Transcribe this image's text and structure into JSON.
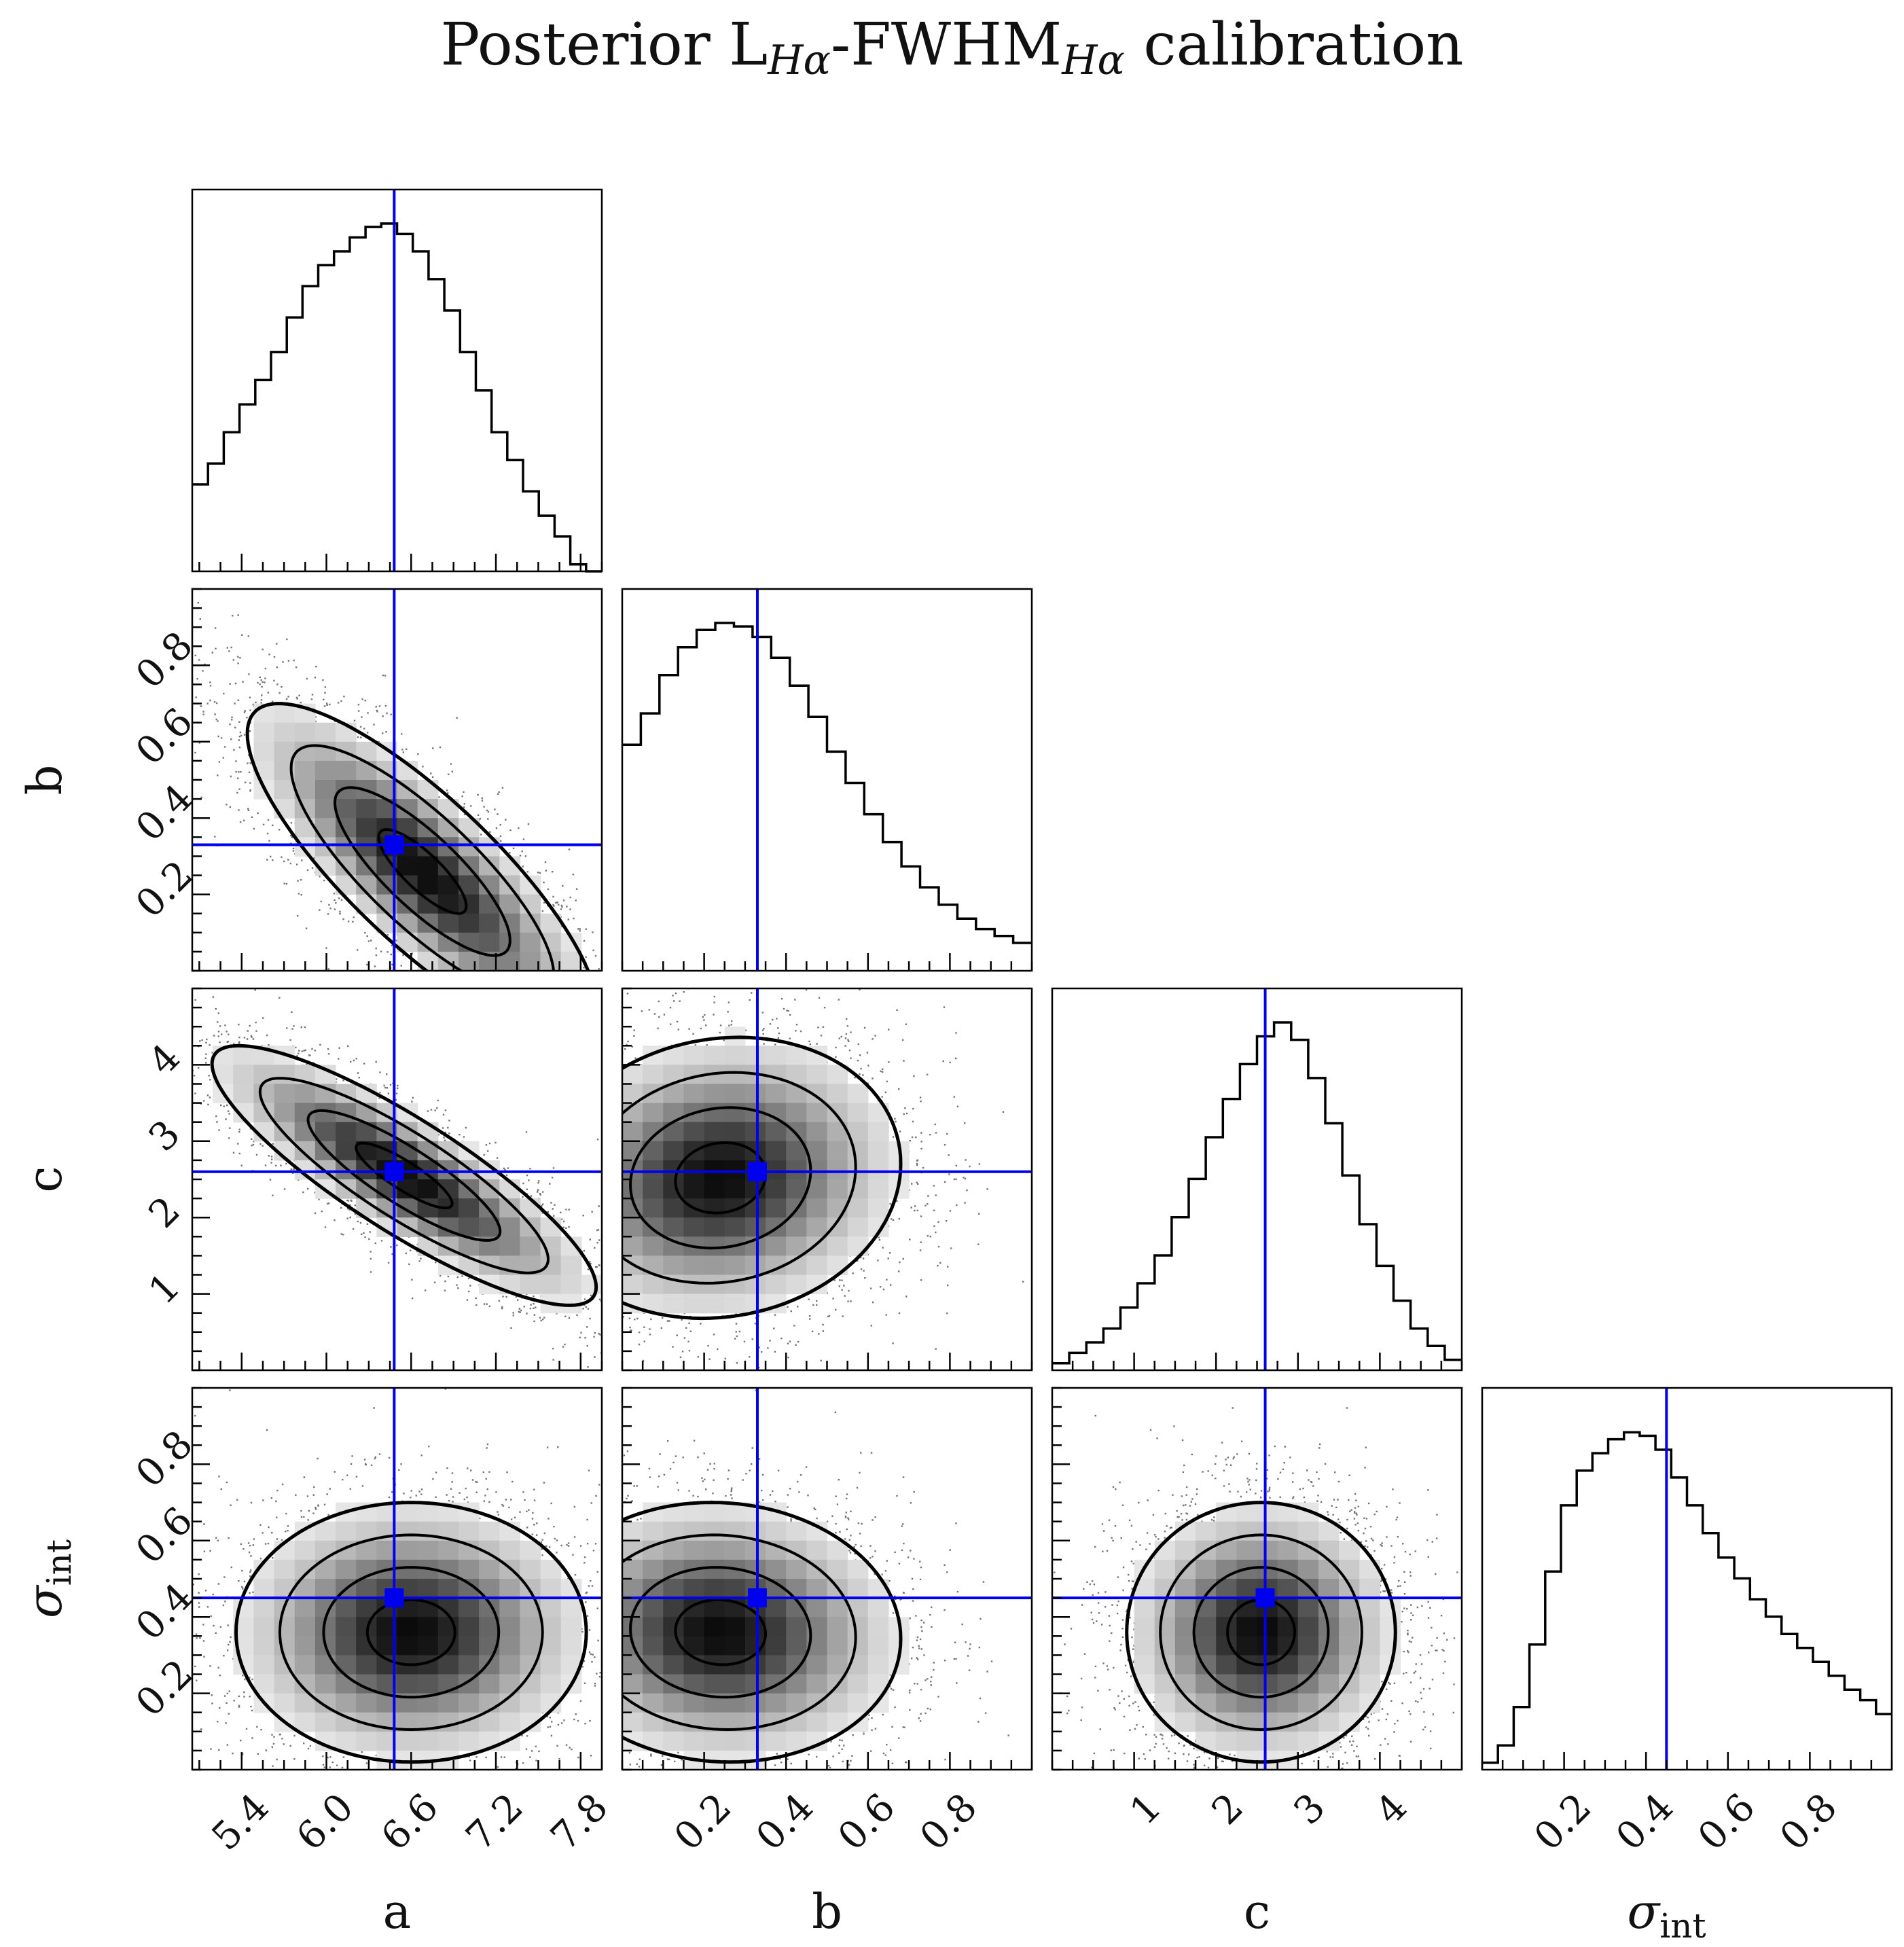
{
  "title": {
    "prefix": "Posterior L",
    "sub1": "Hα",
    "middle": "-FWHM",
    "sub2": "Hα",
    "suffix": " calibration"
  },
  "chart_data": {
    "type": "corner",
    "parameters": [
      "a",
      "b",
      "c",
      "σ_int"
    ],
    "axis_labels": {
      "a": "a",
      "b": "b",
      "c": "c",
      "sigma_int_symbol": "σ",
      "sigma_int_sub": "int"
    },
    "ranges": {
      "a": [
        5.05,
        7.95
      ],
      "b": [
        0.0,
        1.0
      ],
      "c": [
        0.0,
        5.0
      ],
      "sigma_int": [
        0.0,
        1.0
      ]
    },
    "ticks": {
      "a": {
        "values": [
          5.4,
          6.0,
          6.6,
          7.2,
          7.8
        ],
        "labels": [
          "5.4",
          "6.0",
          "6.6",
          "7.2",
          "7.8"
        ]
      },
      "b": {
        "values": [
          0.2,
          0.4,
          0.6,
          0.8
        ],
        "labels": [
          "0.2",
          "0.4",
          "0.6",
          "0.8"
        ]
      },
      "c": {
        "values": [
          1,
          2,
          3,
          4
        ],
        "labels": [
          "1",
          "2",
          "3",
          "4"
        ]
      },
      "sigma_int": {
        "values": [
          0.2,
          0.4,
          0.6,
          0.8
        ],
        "labels": [
          "0.2",
          "0.4",
          "0.6",
          "0.8"
        ]
      }
    },
    "truths": {
      "a": 6.48,
      "b": 0.33,
      "c": 2.6,
      "sigma_int": 0.45
    },
    "truth_color": "#0000ee",
    "histograms": {
      "a": [
        0.25,
        0.31,
        0.4,
        0.48,
        0.55,
        0.63,
        0.73,
        0.82,
        0.88,
        0.92,
        0.96,
        0.99,
        1.0,
        0.97,
        0.92,
        0.84,
        0.75,
        0.63,
        0.52,
        0.4,
        0.32,
        0.23,
        0.16,
        0.1,
        0.02,
        0.0
      ],
      "b": [
        0.65,
        0.74,
        0.85,
        0.93,
        0.98,
        1.0,
        0.99,
        0.96,
        0.9,
        0.82,
        0.73,
        0.63,
        0.54,
        0.45,
        0.37,
        0.3,
        0.24,
        0.19,
        0.15,
        0.12,
        0.1,
        0.08
      ],
      "c": [
        0.02,
        0.05,
        0.08,
        0.12,
        0.18,
        0.25,
        0.33,
        0.44,
        0.55,
        0.67,
        0.78,
        0.88,
        0.96,
        1.0,
        0.95,
        0.84,
        0.71,
        0.56,
        0.42,
        0.3,
        0.2,
        0.12,
        0.07,
        0.03
      ],
      "sigma_int": [
        0.02,
        0.07,
        0.18,
        0.36,
        0.57,
        0.76,
        0.86,
        0.91,
        0.95,
        0.97,
        0.96,
        0.92,
        0.84,
        0.76,
        0.68,
        0.61,
        0.55,
        0.49,
        0.44,
        0.39,
        0.35,
        0.31,
        0.27,
        0.23,
        0.2,
        0.16
      ]
    },
    "densities": [
      {
        "x": "a",
        "y": "b",
        "mean": [
          6.68,
          0.26
        ],
        "sd": [
          0.62,
          0.22
        ],
        "rho": -0.82
      },
      {
        "x": "a",
        "y": "c",
        "mean": [
          6.55,
          2.55
        ],
        "sd": [
          0.68,
          0.85
        ],
        "rho": -0.86
      },
      {
        "x": "b",
        "y": "c",
        "mean": [
          0.24,
          2.52
        ],
        "sd": [
          0.22,
          0.92
        ],
        "rho": 0.1
      },
      {
        "x": "a",
        "y": "sigma_int",
        "mean": [
          6.6,
          0.36
        ],
        "sd": [
          0.62,
          0.17
        ],
        "rho": 0.0
      },
      {
        "x": "b",
        "y": "sigma_int",
        "mean": [
          0.24,
          0.36
        ],
        "sd": [
          0.22,
          0.17
        ],
        "rho": -0.05
      },
      {
        "x": "c",
        "y": "sigma_int",
        "mean": [
          2.55,
          0.36
        ],
        "sd": [
          0.82,
          0.17
        ],
        "rho": 0.0
      }
    ],
    "contour_levels_sigma": [
      0.5,
      1.0,
      1.5,
      2.0
    ],
    "grid": false
  }
}
